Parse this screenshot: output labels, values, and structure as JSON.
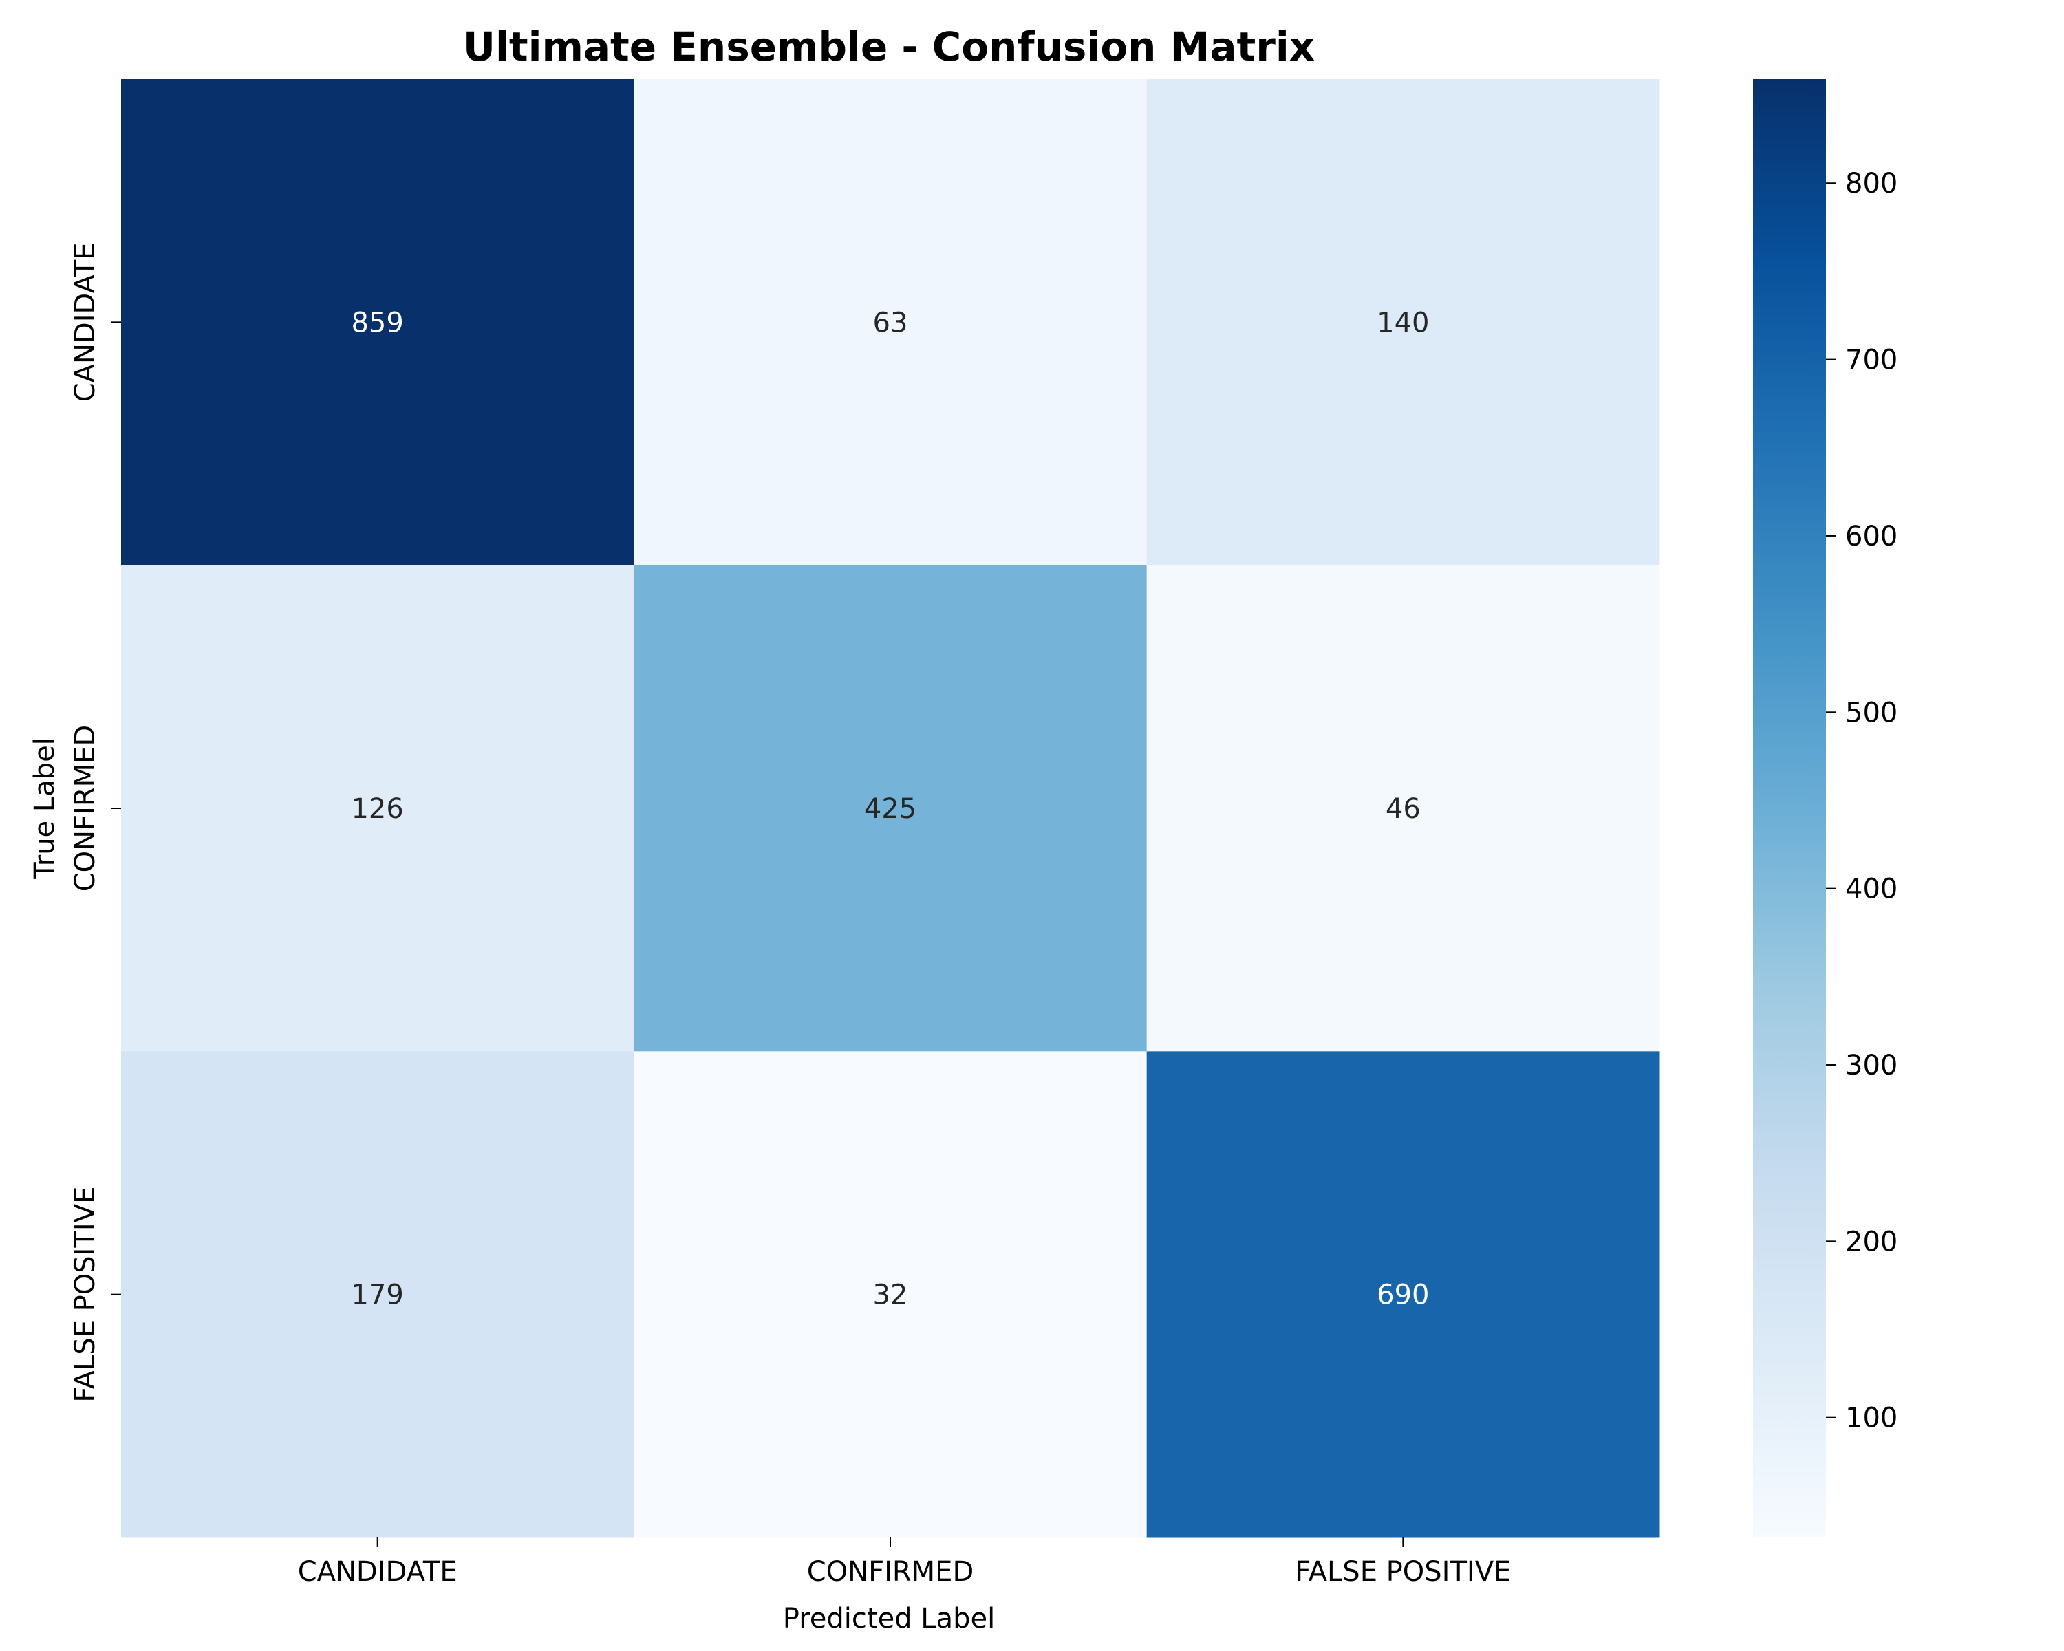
{
  "chart_data": {
    "type": "heatmap",
    "title": "Ultimate Ensemble - Confusion Matrix",
    "xlabel": "Predicted Label",
    "ylabel": "True Label",
    "x_categories": [
      "CANDIDATE",
      "CONFIRMED",
      "FALSE POSITIVE"
    ],
    "y_categories": [
      "CANDIDATE",
      "CONFIRMED",
      "FALSE POSITIVE"
    ],
    "values": [
      [
        859,
        63,
        140
      ],
      [
        126,
        425,
        46
      ],
      [
        179,
        32,
        690
      ]
    ],
    "colormap": "Blues",
    "color_range": [
      32,
      859
    ],
    "colorbar_ticks": [
      100,
      200,
      300,
      400,
      500,
      600,
      700,
      800
    ],
    "grid": false
  }
}
